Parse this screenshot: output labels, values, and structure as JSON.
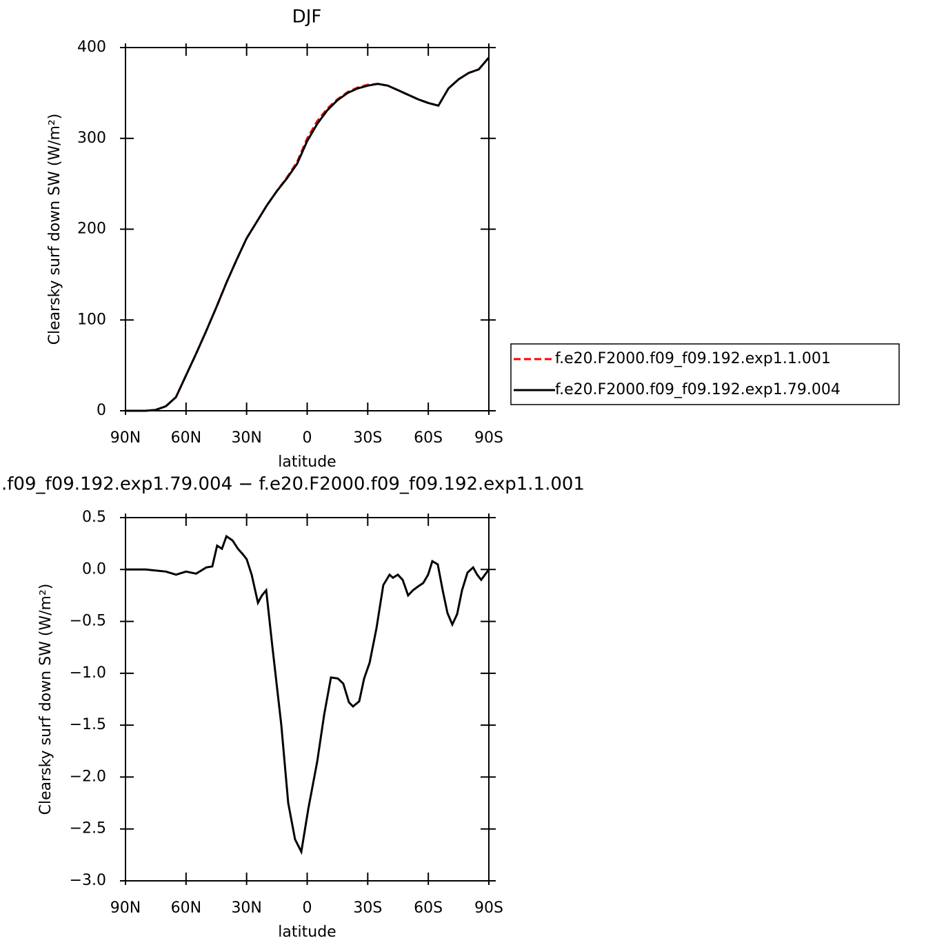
{
  "chart_data": [
    {
      "type": "line",
      "title": "DJF",
      "xlabel": "latitude",
      "ylabel": "Clearsky surf down SW (W/m²)",
      "xlim": [
        90,
        -90
      ],
      "ylim": [
        0,
        400
      ],
      "xticks": [
        {
          "value": 90,
          "label": "90N"
        },
        {
          "value": 60,
          "label": "60N"
        },
        {
          "value": 30,
          "label": "30N"
        },
        0,
        {
          "value": -30,
          "label": "30S"
        },
        {
          "value": -60,
          "label": "60S"
        },
        {
          "value": -90,
          "label": "90S"
        }
      ],
      "yticks": [
        0,
        100,
        200,
        300,
        400
      ],
      "legend": "right",
      "x": [
        90,
        85,
        80,
        75,
        70,
        65,
        60,
        55,
        50,
        45,
        40,
        35,
        30,
        25,
        20,
        15,
        10,
        5,
        0,
        -5,
        -10,
        -15,
        -20,
        -25,
        -30,
        -35,
        -40,
        -45,
        -50,
        -55,
        -60,
        -65,
        -70,
        -75,
        -80,
        -85,
        -90
      ],
      "series": [
        {
          "name": "f.e20.F2000.f09_f09.192.exp1.1.001",
          "color": "#ff0000",
          "dash": true,
          "values": [
            0,
            0,
            0,
            1,
            5,
            15,
            39,
            63,
            88,
            114,
            141,
            166,
            190,
            208,
            226,
            242,
            257,
            274,
            300,
            319,
            333,
            343,
            351,
            356,
            359,
            360,
            358,
            353,
            348,
            343,
            339,
            336,
            355,
            365,
            372,
            376,
            389
          ]
        },
        {
          "name": "f.e20.F2000.f09_f09.192.exp1.79.004",
          "color": "#000000",
          "dash": false,
          "values": [
            0,
            0,
            0,
            1,
            5,
            15,
            39,
            63,
            88,
            114,
            141,
            166,
            190,
            208,
            226,
            242,
            256,
            272,
            297,
            316,
            331,
            342,
            350,
            355,
            358,
            360,
            358,
            353,
            348,
            343,
            339,
            336,
            355,
            365,
            372,
            376,
            389
          ]
        }
      ]
    },
    {
      "type": "line",
      "title": ".f09_f09.192.exp1.79.004 − f.e20.F2000.f09_f09.192.exp1.1.001",
      "xlabel": "latitude",
      "ylabel": "Clearsky surf down SW (W/m²)",
      "xlim": [
        90,
        -90
      ],
      "ylim": [
        -3,
        0.5
      ],
      "xticks": [
        {
          "value": 90,
          "label": "90N"
        },
        {
          "value": 60,
          "label": "60N"
        },
        {
          "value": 30,
          "label": "30N"
        },
        0,
        {
          "value": -30,
          "label": "30S"
        },
        {
          "value": -60,
          "label": "60S"
        },
        {
          "value": -90,
          "label": "90S"
        }
      ],
      "yticks": [
        0.5,
        {
          "value": 0,
          "label": "0.0"
        },
        {
          "value": -0.5,
          "label": "−0.5"
        },
        {
          "value": -1,
          "label": "−1.0"
        },
        {
          "value": -1.5,
          "label": "−1.5"
        },
        {
          "value": -2,
          "label": "−2.0"
        },
        {
          "value": -2.5,
          "label": "−2.5"
        },
        {
          "value": -3,
          "label": "−3.0"
        }
      ],
      "color": "#000000",
      "x": [
        90,
        80,
        70,
        65,
        60,
        55,
        50,
        47,
        44.6,
        42.2,
        40,
        37,
        34.3,
        32,
        30,
        27.5,
        24.4,
        22.4,
        20.3,
        17.3,
        12.8,
        9.4,
        6,
        2.9,
        -0.6,
        -5,
        -8.4,
        -11.8,
        -15.2,
        -17.9,
        -20.7,
        -22.7,
        -25.8,
        -28.2,
        -30.9,
        -34.3,
        -37.7,
        -40.8,
        -42.5,
        -44.9,
        -47.3,
        -50,
        -52.4,
        -55.2,
        -57.5,
        -59.9,
        -62,
        -64.7,
        -67.1,
        -69.5,
        -71.9,
        -74.3,
        -76.7,
        -79.4,
        -82.2,
        -84.2,
        -86.2,
        -90
      ],
      "values": [
        0,
        0,
        -0.02,
        -0.05,
        -0.02,
        -0.04,
        0.02,
        0.03,
        0.23,
        0.2,
        0.32,
        0.28,
        0.2,
        0.15,
        0.1,
        -0.05,
        -0.32,
        -0.25,
        -0.2,
        -0.73,
        -1.5,
        -2.25,
        -2.6,
        -2.72,
        -2.3,
        -1.85,
        -1.4,
        -1.04,
        -1.05,
        -1.1,
        -1.28,
        -1.32,
        -1.27,
        -1.05,
        -0.9,
        -0.57,
        -0.15,
        -0.05,
        -0.08,
        -0.05,
        -0.1,
        -0.25,
        -0.2,
        -0.16,
        -0.13,
        -0.05,
        0.08,
        0.05,
        -0.2,
        -0.42,
        -0.53,
        -0.43,
        -0.2,
        -0.03,
        0.02,
        -0.05,
        -0.1,
        0
      ]
    }
  ]
}
